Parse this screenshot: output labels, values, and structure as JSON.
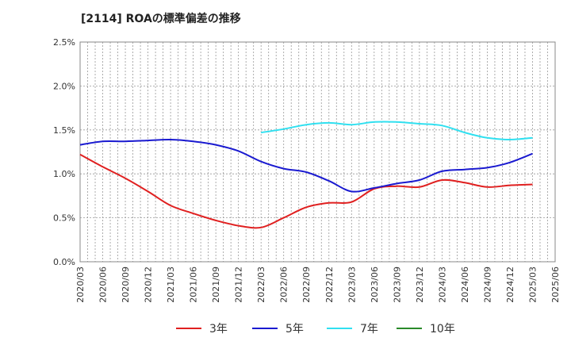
{
  "chart_data": {
    "type": "line",
    "title": "[2114]  ROAの標準偏差の推移",
    "xlabel": "",
    "ylabel": "",
    "ylim": [
      0,
      2.5
    ],
    "yticks": [
      "0.0%",
      "0.5%",
      "1.0%",
      "1.5%",
      "2.0%",
      "2.5%"
    ],
    "x": [
      "2020/03",
      "2020/06",
      "2020/09",
      "2020/12",
      "2021/03",
      "2021/06",
      "2021/09",
      "2021/12",
      "2022/03",
      "2022/06",
      "2022/09",
      "2022/12",
      "2023/03",
      "2023/06",
      "2023/09",
      "2023/12",
      "2024/03",
      "2024/06",
      "2024/09",
      "2024/12",
      "2025/03",
      "2025/06"
    ],
    "grid": true,
    "legend_position": "bottom",
    "series": [
      {
        "name": "3年",
        "color": "#e02020",
        "values": [
          1.22,
          1.08,
          0.95,
          0.8,
          0.64,
          0.55,
          0.47,
          0.41,
          0.39,
          0.5,
          0.62,
          0.67,
          0.68,
          0.83,
          0.86,
          0.85,
          0.93,
          0.9,
          0.85,
          0.87,
          0.88,
          null
        ]
      },
      {
        "name": "5年",
        "color": "#1a1ad0",
        "values": [
          1.33,
          1.37,
          1.37,
          1.38,
          1.39,
          1.37,
          1.33,
          1.26,
          1.14,
          1.06,
          1.02,
          0.92,
          0.8,
          0.84,
          0.89,
          0.93,
          1.03,
          1.05,
          1.07,
          1.13,
          1.23,
          null
        ]
      },
      {
        "name": "7年",
        "color": "#30e0f0",
        "values": [
          null,
          null,
          null,
          null,
          null,
          null,
          null,
          null,
          1.47,
          1.51,
          1.56,
          1.58,
          1.56,
          1.59,
          1.59,
          1.57,
          1.55,
          1.47,
          1.41,
          1.39,
          1.41,
          null
        ]
      },
      {
        "name": "10年",
        "color": "#2a8a2a",
        "values": [
          null,
          null,
          null,
          null,
          null,
          null,
          null,
          null,
          null,
          null,
          null,
          null,
          null,
          null,
          null,
          null,
          null,
          null,
          null,
          null,
          null,
          null
        ]
      }
    ]
  }
}
